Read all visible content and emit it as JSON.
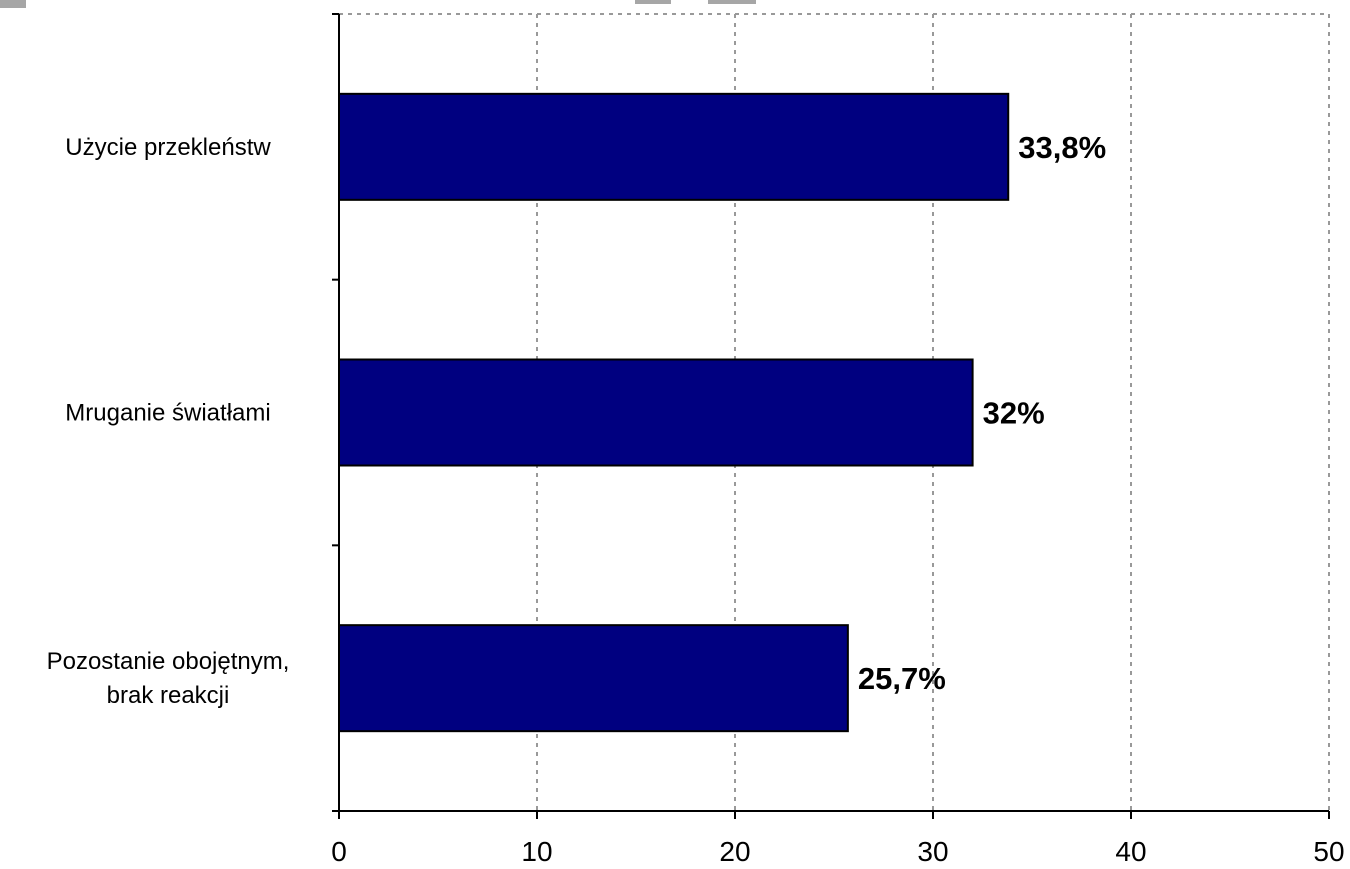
{
  "chart_data": {
    "type": "bar",
    "orientation": "horizontal",
    "categories": [
      "Użycie przekleństw",
      "Mruganie światłami",
      "Pozostanie obojętnym, brak reakcji"
    ],
    "category_lines": [
      [
        "Użycie przekleństw"
      ],
      [
        "Mruganie światłami"
      ],
      [
        "Pozostanie obojętnym,",
        "brak reakcji"
      ]
    ],
    "values": [
      33.8,
      32,
      25.7
    ],
    "data_labels": [
      "33,8%",
      "32%",
      "25,7%"
    ],
    "xlim": [
      0,
      50
    ],
    "xticks": [
      0,
      10,
      20,
      30,
      40,
      50
    ],
    "xtick_labels": [
      "0",
      "10",
      "20",
      "30",
      "40",
      "50"
    ],
    "grid": true,
    "legend": "none",
    "colors": {
      "bar_fill": "#000080",
      "bar_stroke": "#000000",
      "grid": "#999999",
      "axis": "#000000"
    }
  }
}
